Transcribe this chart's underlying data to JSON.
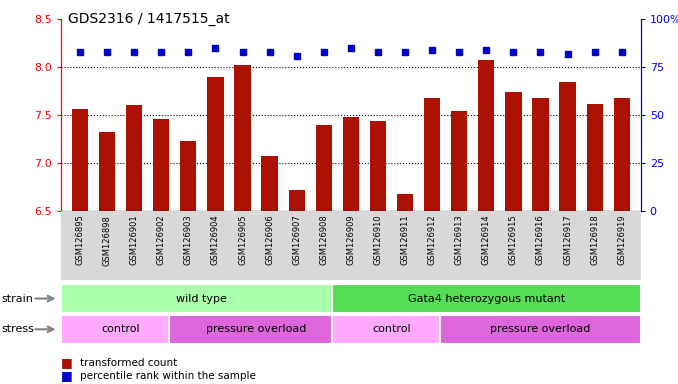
{
  "title": "GDS2316 / 1417515_at",
  "samples": [
    "GSM126895",
    "GSM126898",
    "GSM126901",
    "GSM126902",
    "GSM126903",
    "GSM126904",
    "GSM126905",
    "GSM126906",
    "GSM126907",
    "GSM126908",
    "GSM126909",
    "GSM126910",
    "GSM126911",
    "GSM126912",
    "GSM126913",
    "GSM126914",
    "GSM126915",
    "GSM126916",
    "GSM126917",
    "GSM126918",
    "GSM126919"
  ],
  "bar_values": [
    7.56,
    7.33,
    7.61,
    7.46,
    7.23,
    7.9,
    8.02,
    7.07,
    6.72,
    7.4,
    7.48,
    7.44,
    6.68,
    7.68,
    7.54,
    8.08,
    7.74,
    7.68,
    7.85,
    7.62,
    7.68
  ],
  "percentile_values": [
    83,
    83,
    83,
    83,
    83,
    85,
    83,
    83,
    81,
    83,
    85,
    83,
    83,
    84,
    83,
    84,
    83,
    83,
    82,
    83,
    83
  ],
  "ylim_left": [
    6.5,
    8.5
  ],
  "ylim_right": [
    0,
    100
  ],
  "yticks_left": [
    6.5,
    7.0,
    7.5,
    8.0,
    8.5
  ],
  "yticks_right": [
    0,
    25,
    50,
    75,
    100
  ],
  "bar_color": "#aa1100",
  "dot_color": "#0000cc",
  "bar_width": 0.6,
  "strain_groups": [
    {
      "label": "wild type",
      "start": 0,
      "end": 10,
      "color": "#aaffaa"
    },
    {
      "label": "Gata4 heterozygous mutant",
      "start": 10,
      "end": 21,
      "color": "#55dd55"
    }
  ],
  "stress_groups": [
    {
      "label": "control",
      "start": 0,
      "end": 4,
      "color": "#ffaaff"
    },
    {
      "label": "pressure overload",
      "start": 4,
      "end": 10,
      "color": "#dd66dd"
    },
    {
      "label": "control",
      "start": 10,
      "end": 14,
      "color": "#ffaaff"
    },
    {
      "label": "pressure overload",
      "start": 14,
      "end": 21,
      "color": "#dd66dd"
    }
  ],
  "legend_items": [
    {
      "label": "transformed count",
      "color": "#aa1100"
    },
    {
      "label": "percentile rank within the sample",
      "color": "#0000cc"
    }
  ],
  "strain_label": "strain",
  "stress_label": "stress"
}
